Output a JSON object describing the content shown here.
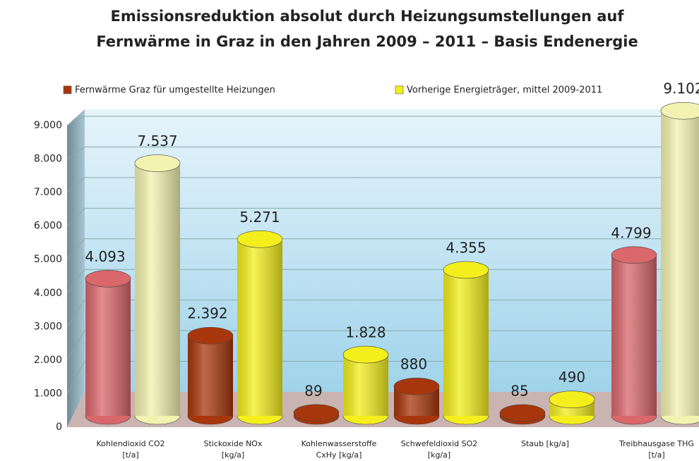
{
  "chart_data": {
    "type": "bar3d",
    "title": [
      "Emissionsreduktion absolut durch Heizungsumstellungen auf",
      "Fernwärme in Graz in den Jahren 2009 – 2011 – Basis Endenergie"
    ],
    "categories": [
      "Kohlendioxid CO2\n[t/a]",
      "Stickoxide NOx\n[kg/a]",
      "Kohlenwasserstoffe\nCxHy [kg/a]",
      "Schwefeldioxid SO2\n[kg/a]",
      "Staub [kg/a]",
      "Treibhausgase THG\n[t/a]"
    ],
    "series": [
      {
        "name": "Fernwärme Graz für umgestellte Heizungen",
        "color": "#a8360c",
        "colors": [
          "#d9676c",
          "#a8360c",
          "#a8360c",
          "#a8360c",
          "#a8360c",
          "#d9676c"
        ],
        "values": [
          4093,
          2392,
          89,
          880,
          85,
          4799
        ],
        "value_labels": [
          "4.093",
          "2.392",
          "89",
          "880",
          "85",
          "4.799"
        ]
      },
      {
        "name": "Vorherige Energieträger, mittel 2009-2011",
        "color": "#f4ef1c",
        "colors": [
          "#f4f2b0",
          "#f4ef1c",
          "#f4ef1c",
          "#f4ef1c",
          "#f4ef1c",
          "#f4f2b0"
        ],
        "values": [
          7537,
          5271,
          1828,
          4355,
          490,
          9102
        ],
        "value_labels": [
          "7.537",
          "5.271",
          "1.828",
          "4.355",
          "490",
          "9.102"
        ]
      }
    ],
    "ylim": [
      0,
      9000
    ],
    "yticks": [
      0,
      {
        "value": 1000,
        "label": "1.000"
      },
      {
        "value": 2000,
        "label": "2.000"
      },
      {
        "value": 3000,
        "label": "3.000"
      },
      {
        "value": 4000,
        "label": "4.000"
      },
      {
        "value": 5000,
        "label": "5.000"
      },
      {
        "value": 6000,
        "label": "6.000"
      },
      {
        "value": 7000,
        "label": "7.000"
      },
      {
        "value": 8000,
        "label": "8.000"
      },
      {
        "value": 9000,
        "label": "9.000"
      }
    ],
    "grid": true
  }
}
